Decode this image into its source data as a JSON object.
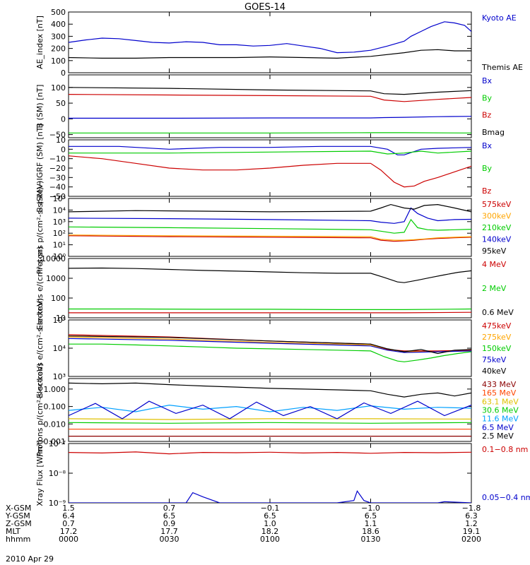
{
  "title": "GOES-14",
  "date_label": "2010 Apr 29",
  "chart_data": [
    {
      "type": "line",
      "ylabel": "AE_index [nT]",
      "yscale": "linear",
      "ylim": [
        0,
        500
      ],
      "yticks": [
        0,
        100,
        200,
        300,
        400,
        500
      ],
      "ytick_labels": [
        "0",
        "100",
        "200",
        "300",
        "400",
        "500"
      ],
      "series": [
        {
          "name": "Kyoto AE",
          "color": "#0000cc",
          "x": [
            0,
            5,
            10,
            15,
            20,
            25,
            30,
            35,
            40,
            45,
            50,
            55,
            60,
            65,
            70,
            75,
            80,
            85,
            90,
            95,
            100,
            102,
            105,
            108,
            110,
            112,
            115,
            118,
            120
          ],
          "y": [
            250,
            270,
            285,
            280,
            265,
            250,
            245,
            255,
            250,
            230,
            230,
            220,
            225,
            240,
            220,
            200,
            165,
            170,
            185,
            220,
            260,
            300,
            340,
            380,
            400,
            420,
            410,
            390,
            340
          ]
        },
        {
          "name": "Themis AE",
          "color": "#000000",
          "x": [
            0,
            10,
            20,
            30,
            40,
            50,
            60,
            70,
            80,
            90,
            100,
            105,
            110,
            115,
            120
          ],
          "y": [
            125,
            120,
            120,
            125,
            125,
            125,
            130,
            125,
            120,
            135,
            165,
            185,
            190,
            180,
            180
          ]
        }
      ]
    },
    {
      "type": "line",
      "ylabel": "B (SM) [nT]",
      "yscale": "linear",
      "ylim": [
        -60,
        140
      ],
      "yticks": [
        -50,
        0,
        50,
        100
      ],
      "ytick_labels": [
        "−50",
        "0",
        "50",
        "100"
      ],
      "series": [
        {
          "name": "Bx",
          "color": "#0000cc",
          "x": [
            0,
            30,
            60,
            90,
            94,
            100,
            110,
            120
          ],
          "y": [
            2,
            2,
            3,
            3,
            4,
            5,
            7,
            8
          ]
        },
        {
          "name": "By",
          "color": "#00cc00",
          "x": [
            0,
            30,
            60,
            90,
            100,
            120
          ],
          "y": [
            -45,
            -45,
            -45,
            -44,
            -44,
            -45
          ]
        },
        {
          "name": "Bz",
          "color": "#cc0000",
          "x": [
            0,
            30,
            60,
            90,
            94,
            100,
            110,
            120
          ],
          "y": [
            78,
            76,
            74,
            72,
            60,
            55,
            62,
            68
          ]
        },
        {
          "name": "Bmag",
          "color": "#000000",
          "x": [
            0,
            30,
            60,
            90,
            94,
            100,
            110,
            120
          ],
          "y": [
            100,
            97,
            92,
            89,
            80,
            78,
            85,
            90
          ]
        }
      ]
    },
    {
      "type": "line",
      "ylabel": "B (SM)−IGRF (SM) [nT]",
      "yscale": "linear",
      "ylim": [
        -50,
        10
      ],
      "yticks": [
        -50,
        -40,
        -30,
        -20,
        -10,
        0,
        10
      ],
      "ytick_labels": [
        "−50",
        "−40",
        "−30",
        "−20",
        "−10",
        "0",
        "10"
      ],
      "series": [
        {
          "name": "Bx",
          "color": "#0000cc",
          "x": [
            0,
            15,
            30,
            45,
            60,
            75,
            90,
            95,
            98,
            100,
            105,
            110,
            120
          ],
          "y": [
            3,
            3,
            0,
            2,
            2,
            3,
            3,
            0,
            -6,
            -6,
            0,
            1,
            2
          ]
        },
        {
          "name": "By",
          "color": "#00cc00",
          "x": [
            0,
            30,
            60,
            90,
            95,
            100,
            105,
            110,
            120
          ],
          "y": [
            -4,
            -4,
            -3,
            -2,
            -5,
            -4,
            -2,
            -4,
            -2
          ]
        },
        {
          "name": "Bz",
          "color": "#cc0000",
          "x": [
            0,
            10,
            20,
            30,
            40,
            50,
            60,
            70,
            80,
            90,
            93,
            97,
            100,
            103,
            106,
            110,
            115,
            120
          ],
          "y": [
            -7,
            -10,
            -15,
            -20,
            -22,
            -22,
            -20,
            -17,
            -15,
            -15,
            -22,
            -35,
            -40,
            -39,
            -34,
            -30,
            -24,
            -18
          ]
        }
      ]
    },
    {
      "type": "line",
      "ylabel": "Protons p/(cm²-s-sr-keV)",
      "yscale": "log",
      "ylim": [
        1,
        100000
      ],
      "yticks": [
        1,
        10,
        100,
        1000,
        10000,
        100000
      ],
      "ytick_labels": [
        "10⁰",
        "10¹",
        "10²",
        "10³",
        "10⁴",
        "10⁵"
      ],
      "series": [
        {
          "name": "575keV",
          "color": "#cc0000",
          "x": [
            0,
            30,
            60,
            90,
            93,
            97,
            100,
            103,
            106,
            110,
            115,
            120
          ],
          "y": [
            60,
            50,
            45,
            40,
            25,
            20,
            22,
            25,
            30,
            35,
            40,
            45
          ]
        },
        {
          "name": "300keV",
          "color": "#ffa500",
          "x": [
            0,
            30,
            60,
            90,
            93,
            97,
            100,
            103,
            106,
            110,
            115,
            120
          ],
          "y": [
            70,
            60,
            55,
            50,
            30,
            25,
            25,
            28,
            32,
            40,
            45,
            50
          ]
        },
        {
          "name": "210keV",
          "color": "#00cc00",
          "x": [
            0,
            30,
            60,
            90,
            93,
            97,
            100,
            102,
            104,
            107,
            110,
            115,
            120
          ],
          "y": [
            350,
            300,
            250,
            200,
            150,
            100,
            120,
            1500,
            300,
            200,
            180,
            200,
            220
          ]
        },
        {
          "name": "140keV",
          "color": "#0000cc",
          "x": [
            0,
            30,
            60,
            90,
            93,
            97,
            100,
            102,
            104,
            107,
            110,
            115,
            120
          ],
          "y": [
            2000,
            1800,
            1500,
            1200,
            900,
            700,
            1000,
            15000,
            5000,
            2000,
            1200,
            1500,
            1600
          ]
        },
        {
          "name": "95keV",
          "color": "#000000",
          "x": [
            0,
            20,
            40,
            60,
            80,
            90,
            93,
            96,
            100,
            103,
            106,
            110,
            115,
            120
          ],
          "y": [
            7000,
            9000,
            8000,
            7000,
            7500,
            8000,
            15000,
            30000,
            15000,
            12000,
            25000,
            30000,
            15000,
            7000
          ]
        }
      ]
    },
    {
      "type": "line",
      "ylabel": "Electrons e/(cm²-s-sr)",
      "yscale": "log",
      "ylim": [
        10,
        10000
      ],
      "yticks": [
        10,
        100,
        1000,
        10000
      ],
      "ytick_labels": [
        "10",
        "100",
        "1000",
        "10000"
      ],
      "series": [
        {
          "name": "4 MeV",
          "color": "#cc0000",
          "x": [
            0,
            20,
            40,
            60,
            80,
            100,
            120
          ],
          "y": [
            18,
            18,
            18,
            18,
            18,
            18,
            19
          ]
        },
        {
          "name": "2 MeV",
          "color": "#00cc00",
          "x": [
            0,
            20,
            40,
            60,
            80,
            100,
            120
          ],
          "y": [
            28,
            28,
            27,
            27,
            26,
            26,
            28
          ]
        },
        {
          "name": "0.6 MeV",
          "color": "#000000",
          "x": [
            0,
            10,
            20,
            30,
            40,
            50,
            60,
            70,
            80,
            90,
            94,
            98,
            100,
            104,
            108,
            112,
            116,
            120
          ],
          "y": [
            3200,
            3300,
            3100,
            2800,
            2500,
            2300,
            2100,
            1900,
            1800,
            1800,
            1100,
            650,
            600,
            800,
            1100,
            1500,
            2000,
            2400
          ]
        }
      ]
    },
    {
      "type": "line",
      "ylabel": "Electrons e/(cm²-s-sr-keV)",
      "yscale": "log",
      "ylim": [
        1000,
        100000
      ],
      "yticks": [
        1000,
        10000,
        100000
      ],
      "ytick_labels": [
        "10³",
        "10⁴",
        "10⁵"
      ],
      "series": [
        {
          "name": "475keV",
          "color": "#cc0000",
          "x": [
            0,
            30,
            60,
            90,
            95,
            100,
            110,
            120
          ],
          "y": [
            30000,
            25000,
            18000,
            14000,
            9000,
            8000,
            8000,
            8500
          ]
        },
        {
          "name": "275keV",
          "color": "#ffa500",
          "x": [
            0,
            30,
            60,
            90,
            95,
            100,
            110,
            120
          ],
          "y": [
            25000,
            21000,
            16000,
            13000,
            8500,
            7500,
            7500,
            8000
          ]
        },
        {
          "name": "150keV",
          "color": "#00cc00",
          "x": [
            0,
            10,
            20,
            30,
            40,
            50,
            60,
            70,
            80,
            90,
            94,
            98,
            100,
            104,
            108,
            112,
            116,
            120
          ],
          "y": [
            14000,
            14000,
            13000,
            12000,
            11000,
            10000,
            9500,
            9000,
            8500,
            8000,
            5000,
            3500,
            3300,
            3800,
            4500,
            5500,
            6500,
            7500
          ]
        },
        {
          "name": "75keV",
          "color": "#0000cc",
          "x": [
            0,
            30,
            60,
            90,
            95,
            100,
            110,
            120
          ],
          "y": [
            22000,
            19000,
            15000,
            12000,
            8500,
            7000,
            7500,
            8000
          ]
        },
        {
          "name": "40keV",
          "color": "#000000",
          "x": [
            0,
            30,
            60,
            90,
            95,
            100,
            105,
            110,
            115,
            120
          ],
          "y": [
            27000,
            24000,
            18000,
            14000,
            9500,
            7500,
            9000,
            6500,
            8500,
            9000
          ]
        }
      ]
    },
    {
      "type": "line",
      "ylabel": "Protons p/(cm²-s-sr-keV)",
      "yscale": "log",
      "ylim": [
        0.001,
        4
      ],
      "yticks": [
        0.001,
        0.01,
        0.1,
        1
      ],
      "ytick_labels": [
        "0.001",
        "0.010",
        "0.100",
        "1.000"
      ],
      "series": [
        {
          "name": "433 MeV",
          "color": "#8b0000",
          "x": [
            0,
            30,
            60,
            90,
            120
          ],
          "y": [
            0.002,
            0.002,
            0.002,
            0.002,
            0.002
          ]
        },
        {
          "name": "165 MeV",
          "color": "#ff4500",
          "x": [
            0,
            30,
            60,
            90,
            120
          ],
          "y": [
            0.005,
            0.005,
            0.005,
            0.005,
            0.005
          ]
        },
        {
          "name": "63.1 MeV",
          "color": "#e0c000",
          "x": [
            0,
            30,
            60,
            90,
            120
          ],
          "y": [
            0.02,
            0.018,
            0.02,
            0.02,
            0.019
          ]
        },
        {
          "name": "30.6 MeV",
          "color": "#00cc00",
          "x": [
            0,
            30,
            60,
            90,
            120
          ],
          "y": [
            0.012,
            0.011,
            0.012,
            0.011,
            0.012
          ]
        },
        {
          "name": "11.6 MeV",
          "color": "#00a0ff",
          "x": [
            0,
            10,
            20,
            30,
            40,
            50,
            60,
            70,
            80,
            90,
            100,
            110,
            120
          ],
          "y": [
            0.06,
            0.09,
            0.05,
            0.12,
            0.07,
            0.1,
            0.05,
            0.09,
            0.06,
            0.11,
            0.07,
            0.09,
            0.08
          ]
        },
        {
          "name": "6.5 MeV",
          "color": "#0000cc",
          "x": [
            0,
            8,
            16,
            24,
            32,
            40,
            48,
            56,
            64,
            72,
            80,
            88,
            96,
            104,
            112,
            120
          ],
          "y": [
            0.03,
            0.15,
            0.02,
            0.2,
            0.04,
            0.12,
            0.02,
            0.18,
            0.03,
            0.1,
            0.02,
            0.16,
            0.04,
            0.2,
            0.03,
            0.12
          ]
        },
        {
          "name": "2.5 MeV",
          "color": "#000000",
          "x": [
            0,
            10,
            20,
            30,
            40,
            50,
            60,
            70,
            80,
            90,
            95,
            100,
            105,
            110,
            115,
            120
          ],
          "y": [
            2.2,
            2.0,
            2.2,
            1.8,
            1.5,
            1.3,
            1.1,
            1.0,
            0.9,
            0.8,
            0.5,
            0.35,
            0.5,
            0.6,
            0.4,
            0.6
          ]
        }
      ]
    },
    {
      "type": "line",
      "ylabel": "Xray Flux [W/m²]",
      "yscale": "log",
      "ylim": [
        1e-09,
        1e-07
      ],
      "yticks": [
        1e-09,
        1e-08,
        1e-07
      ],
      "ytick_labels": [
        "10⁻⁹",
        "10⁻⁸",
        "10⁻⁷"
      ],
      "series": [
        {
          "name": "0.1−0.8 nm",
          "color": "#cc0000",
          "x": [
            0,
            10,
            20,
            30,
            40,
            50,
            60,
            70,
            80,
            90,
            100,
            110,
            120
          ],
          "y": [
            5e-08,
            4.8e-08,
            5.2e-08,
            4.5e-08,
            5e-08,
            4.9e-08,
            5.1e-08,
            4.8e-08,
            5e-08,
            4.7e-08,
            5e-08,
            4.9e-08,
            5.1e-08
          ]
        },
        {
          "name": "0.05−0.4 nm",
          "color": "#0000cc",
          "x": [
            0,
            30,
            35,
            37,
            40,
            45,
            60,
            80,
            85,
            86,
            88,
            90,
            110,
            112,
            120
          ],
          "y": [
            1e-09,
            1e-09,
            1e-09,
            2.2e-09,
            1.6e-09,
            1e-09,
            1e-09,
            1e-09,
            1.2e-09,
            2.5e-09,
            1.2e-09,
            1e-09,
            1e-09,
            1.1e-09,
            1e-09
          ]
        }
      ]
    }
  ],
  "x_axis": {
    "row_labels": [
      "X-GSM",
      "Y-GSM",
      "Z-GSM",
      "MLT",
      "hhmm"
    ],
    "columns": [
      [
        "1.5",
        "6.4",
        "0.7",
        "17.2",
        "0000"
      ],
      [
        "0.7",
        "6.5",
        "0.9",
        "17.7",
        "0030"
      ],
      [
        "−0.1",
        "6.5",
        "1.0",
        "18.2",
        "0100"
      ],
      [
        "−1.0",
        "6.5",
        "1.1",
        "18.6",
        "0130"
      ],
      [
        "−1.8",
        "6.3",
        "1.2",
        "19.1",
        "0200"
      ]
    ],
    "tick_minutes": [
      0,
      30,
      60,
      90,
      120
    ],
    "xlim": [
      0,
      120
    ]
  }
}
